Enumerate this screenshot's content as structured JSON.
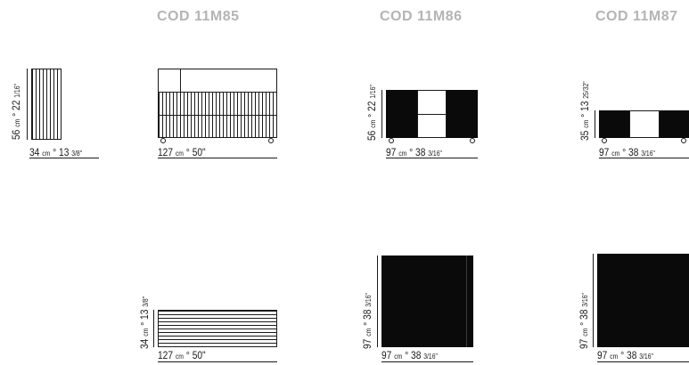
{
  "headers": {
    "col1": "COD 11M85",
    "col2": "COD 11M86",
    "col3": "COD 11M87"
  },
  "dimensions": {
    "side_width": {
      "cm": "34",
      "unit": "cm",
      "in": "13",
      "frac": "3/8\""
    },
    "side_height": {
      "cm": "56",
      "unit": "cm",
      "in": "22",
      "frac": "1/16\""
    },
    "front_85_width": {
      "cm": "127",
      "unit": "cm",
      "in": "50\""
    },
    "front_86_height": {
      "cm": "56",
      "unit": "cm",
      "in": "22",
      "frac": "1/16\""
    },
    "front_86_width": {
      "cm": "97",
      "unit": "cm",
      "in": "38",
      "frac": "3/16\""
    },
    "front_87_height": {
      "cm": "35",
      "unit": "cm",
      "in": "13",
      "frac": "25/32\""
    },
    "front_87_width": {
      "cm": "97",
      "unit": "cm",
      "in": "38",
      "frac": "3/16\""
    },
    "top_85_height": {
      "cm": "34",
      "unit": "cm",
      "in": "13",
      "frac": "3/8\""
    },
    "top_85_width": {
      "cm": "127",
      "unit": "cm",
      "in": "50\""
    },
    "top_86_height": {
      "cm": "97",
      "unit": "cm",
      "in": "38",
      "frac": "3/16\""
    },
    "top_86_width": {
      "cm": "97",
      "unit": "cm",
      "in": "38",
      "frac": "3/16\""
    },
    "top_87_height": {
      "cm": "97",
      "unit": "cm",
      "in": "38",
      "frac": "3/16\""
    },
    "top_87_width": {
      "cm": "97",
      "unit": "cm",
      "in": "38",
      "frac": "3/16\""
    }
  },
  "separator": "°",
  "colors": {
    "header": "#b4b4b4",
    "line": "#1a1a1a",
    "fill": "#0a0a0a"
  }
}
